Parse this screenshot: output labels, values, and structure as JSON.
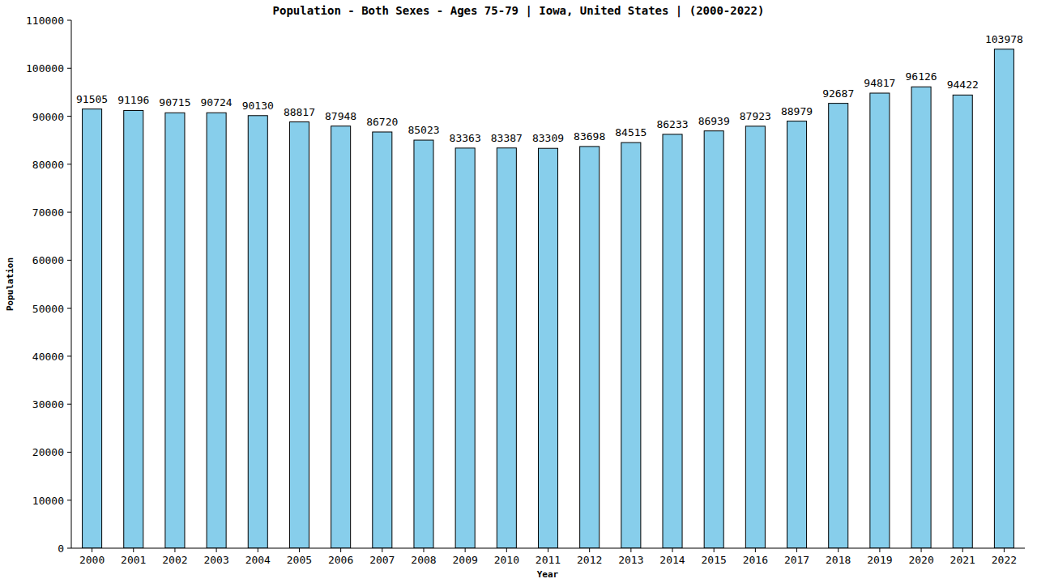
{
  "chart_data": {
    "type": "bar",
    "title": "Population - Both Sexes - Ages 75-79 | Iowa, United States |  (2000-2022)",
    "x_label": "Year",
    "y_label": "Population",
    "categories": [
      "2000",
      "2001",
      "2002",
      "2003",
      "2004",
      "2005",
      "2006",
      "2007",
      "2008",
      "2009",
      "2010",
      "2011",
      "2012",
      "2013",
      "2014",
      "2015",
      "2016",
      "2017",
      "2018",
      "2019",
      "2020",
      "2021",
      "2022"
    ],
    "values": [
      91505,
      91196,
      90715,
      90724,
      90130,
      88817,
      87948,
      86720,
      85023,
      83363,
      83387,
      83309,
      83698,
      84515,
      86233,
      86939,
      87923,
      88979,
      92687,
      94817,
      96126,
      94422,
      103978
    ],
    "color": "#87ceeb",
    "ylim": [
      0,
      110000
    ],
    "yticks": [
      0,
      10000,
      20000,
      30000,
      40000,
      50000,
      60000,
      70000,
      80000,
      90000,
      100000,
      110000
    ],
    "grid": false,
    "data_labels": true
  }
}
